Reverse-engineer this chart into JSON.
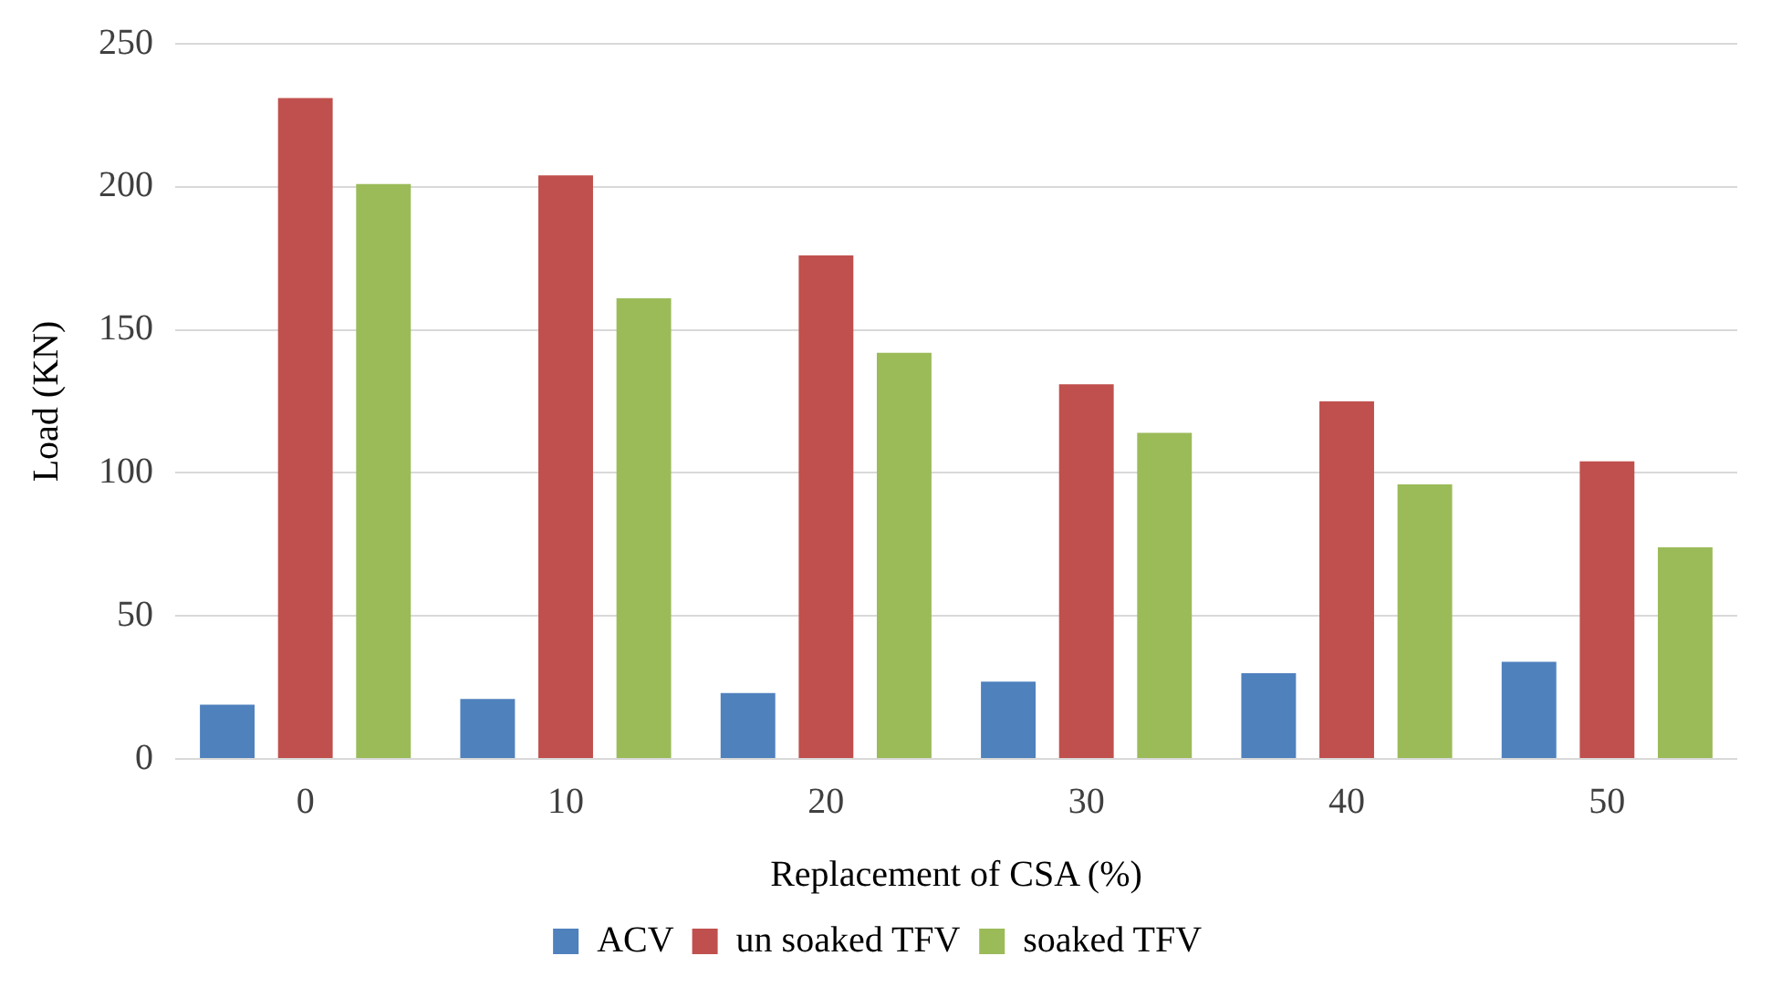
{
  "chart_data": {
    "type": "bar",
    "xlabel": "Replacement of CSA (%)",
    "ylabel": "Load (KN)",
    "categories": [
      "0",
      "10",
      "20",
      "30",
      "40",
      "50"
    ],
    "series": [
      {
        "name": "ACV",
        "color": "#4f81bd",
        "values": [
          19,
          21,
          23,
          27,
          30,
          34
        ]
      },
      {
        "name": "un soaked TFV",
        "color": "#c0504d",
        "values": [
          231,
          204,
          176,
          131,
          125,
          104
        ]
      },
      {
        "name": "soaked TFV",
        "color": "#9bbb59",
        "values": [
          201,
          161,
          142,
          114,
          96,
          74
        ]
      }
    ],
    "ylim": [
      0,
      250
    ],
    "yticks": [
      0,
      50,
      100,
      150,
      200,
      250
    ],
    "grid": "y",
    "legend": "bottom"
  }
}
